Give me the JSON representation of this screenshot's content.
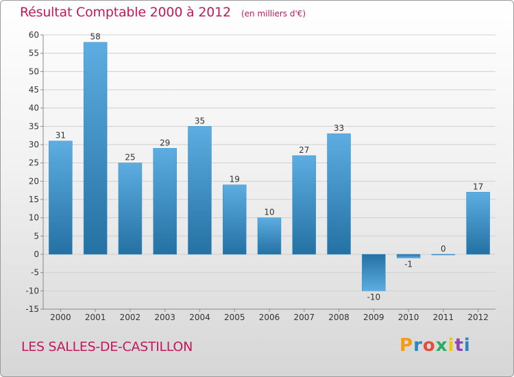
{
  "header": {
    "title": "Résultat Comptable 2000 à 2012",
    "unit": "(en milliers d'€)"
  },
  "footer": {
    "place": "LES SALLES-DE-CASTILLON",
    "logo_letters": [
      "P",
      "r",
      "o",
      "x",
      "i",
      "t",
      "i"
    ],
    "logo_colors": [
      "#f39c12",
      "#2e86c1",
      "#e74c3c",
      "#27ae60",
      "#f1c40f",
      "#8e44ad",
      "#2e86c1"
    ]
  },
  "chart_data": {
    "type": "bar",
    "title": "Résultat Comptable 2000 à 2012",
    "subtitle": "(en milliers d'€)",
    "xlabel": "",
    "ylabel": "",
    "categories": [
      "2000",
      "2001",
      "2002",
      "2003",
      "2004",
      "2005",
      "2006",
      "2007",
      "2008",
      "2009",
      "2010",
      "2011",
      "2012"
    ],
    "values": [
      31,
      58,
      25,
      29,
      35,
      19,
      10,
      27,
      33,
      -10,
      -1,
      0,
      17
    ],
    "ylim": [
      -15,
      60
    ],
    "yticks": [
      60,
      55,
      50,
      45,
      40,
      35,
      30,
      25,
      20,
      15,
      10,
      5,
      0,
      -5,
      -10,
      -15
    ],
    "ytick_labels": [
      "60",
      "55",
      "50",
      "45",
      "40",
      "35",
      "30",
      "25",
      "20",
      "15",
      "10",
      "5",
      "0",
      "-5",
      "-10",
      "-15"
    ],
    "grid": true,
    "colors": {
      "bar_light": "#5dade2",
      "bar_dark": "#2471a3",
      "grid": "#cfcfcf"
    }
  }
}
